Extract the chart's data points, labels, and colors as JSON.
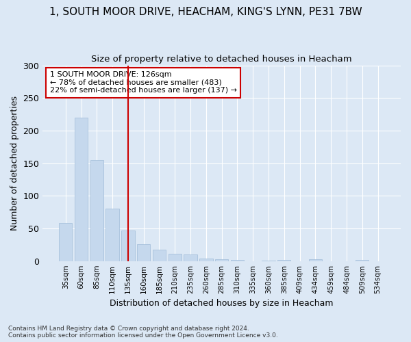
{
  "title1": "1, SOUTH MOOR DRIVE, HEACHAM, KING'S LYNN, PE31 7BW",
  "title2": "Size of property relative to detached houses in Heacham",
  "xlabel": "Distribution of detached houses by size in Heacham",
  "ylabel": "Number of detached properties",
  "categories": [
    "35sqm",
    "60sqm",
    "85sqm",
    "110sqm",
    "135sqm",
    "160sqm",
    "185sqm",
    "210sqm",
    "235sqm",
    "260sqm",
    "285sqm",
    "310sqm",
    "335sqm",
    "360sqm",
    "385sqm",
    "409sqm",
    "434sqm",
    "459sqm",
    "484sqm",
    "509sqm",
    "534sqm"
  ],
  "values": [
    58,
    220,
    155,
    80,
    47,
    26,
    18,
    11,
    10,
    4,
    3,
    2,
    0,
    1,
    2,
    0,
    3,
    0,
    0,
    2,
    0
  ],
  "bar_color": "#c5d8ed",
  "bar_edgecolor": "#a0bcd8",
  "vline_x": 4,
  "vline_color": "#cc0000",
  "annotation_text": "1 SOUTH MOOR DRIVE: 126sqm\n← 78% of detached houses are smaller (483)\n22% of semi-detached houses are larger (137) →",
  "annotation_box_color": "#ffffff",
  "annotation_box_edgecolor": "#cc0000",
  "ylim": [
    0,
    300
  ],
  "yticks": [
    0,
    50,
    100,
    150,
    200,
    250,
    300
  ],
  "footer": "Contains HM Land Registry data © Crown copyright and database right 2024.\nContains public sector information licensed under the Open Government Licence v3.0.",
  "background_color": "#dce8f5",
  "grid_color": "#ffffff",
  "title1_fontsize": 11,
  "title2_fontsize": 9.5
}
